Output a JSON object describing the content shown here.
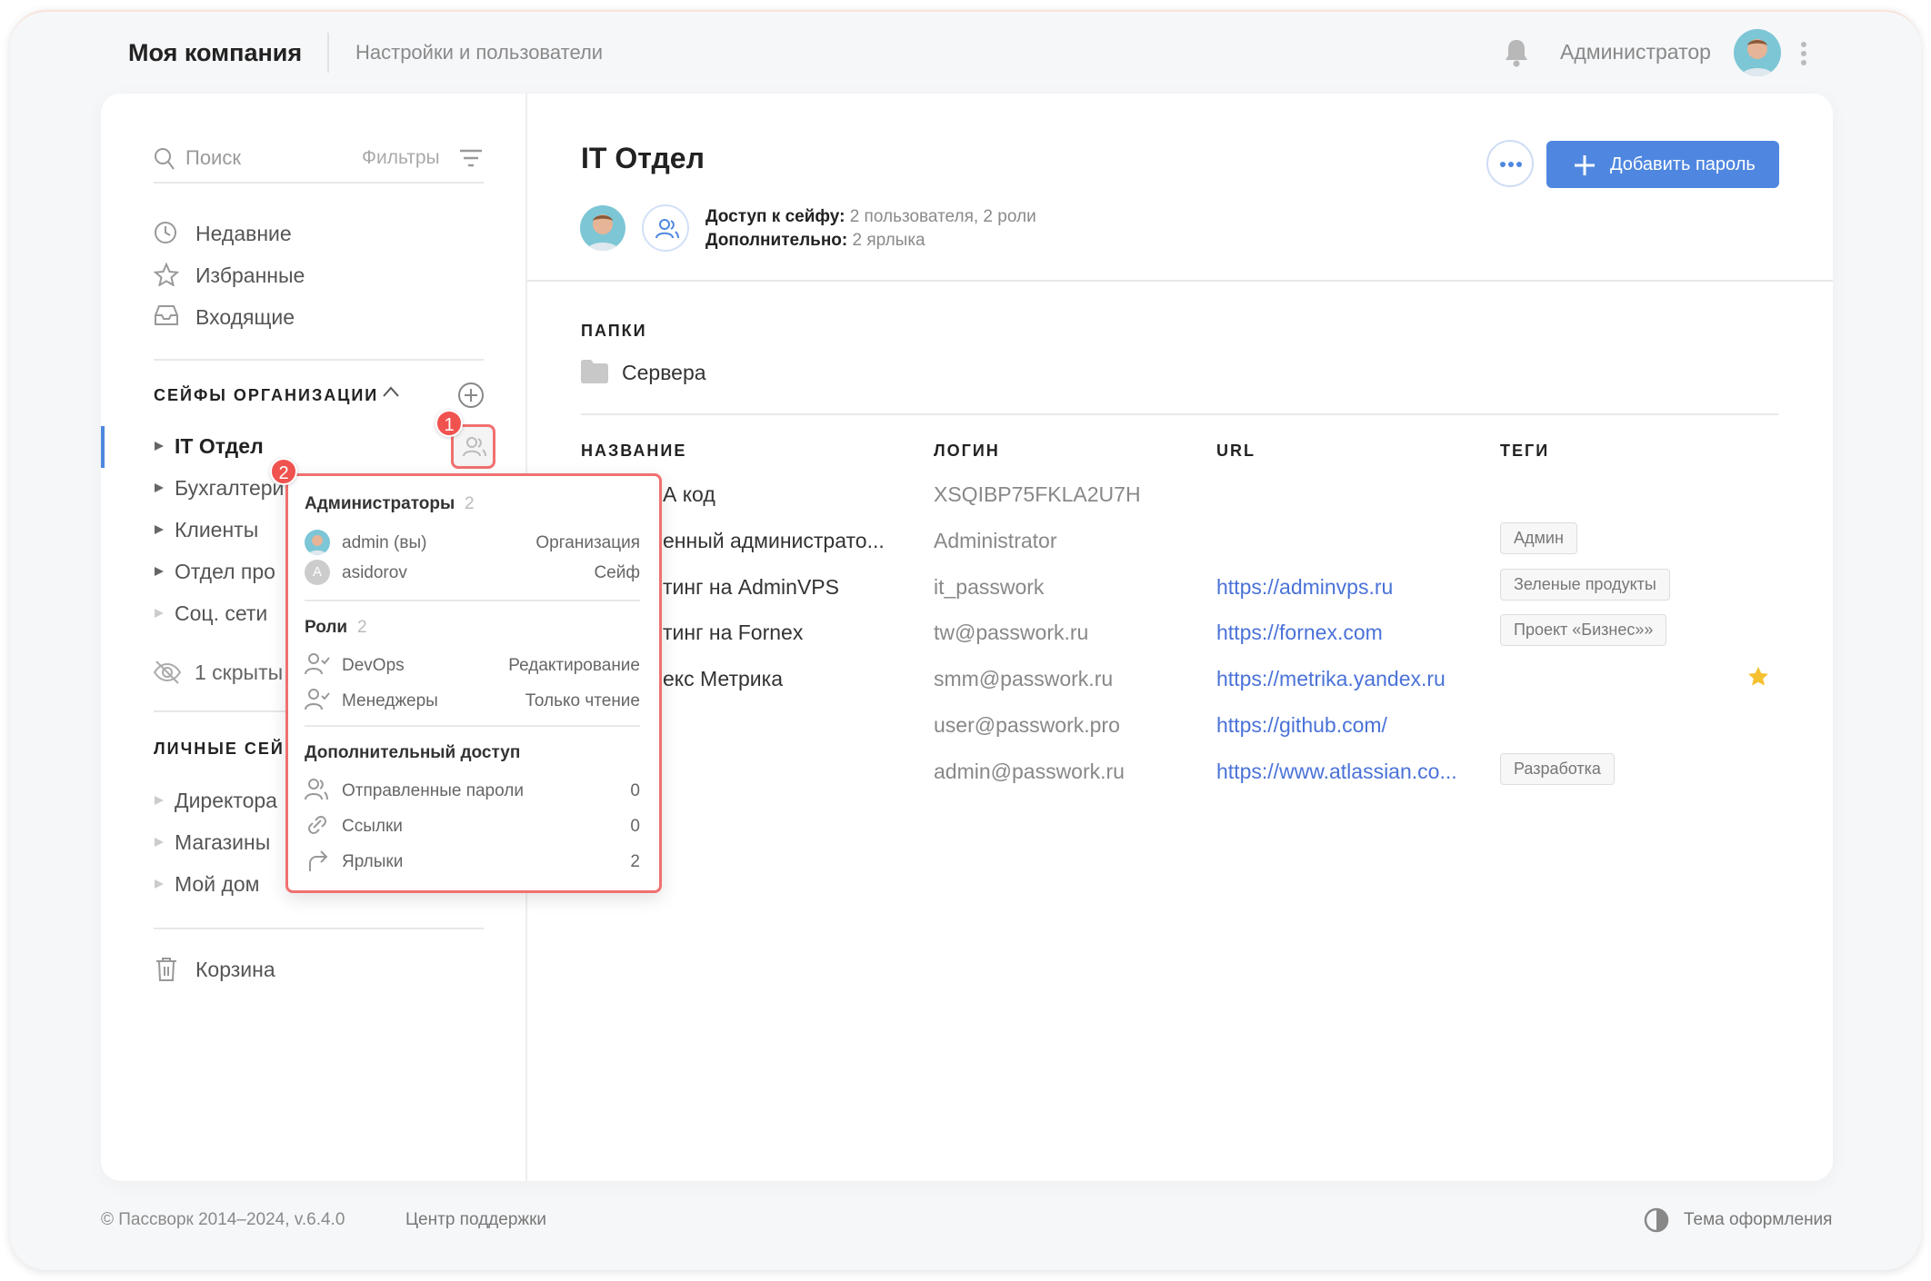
{
  "header": {
    "company": "Моя компания",
    "section": "Настройки и пользователи",
    "user": "Администратор",
    "icons": {
      "bell": "bell-icon",
      "menu": "more-vertical-icon"
    }
  },
  "sidebar": {
    "search_placeholder": "Поиск",
    "filters_label": "Фильтры",
    "nav": [
      {
        "label": "Недавние",
        "icon": "clock-icon"
      },
      {
        "label": "Избранные",
        "icon": "star-icon"
      },
      {
        "label": "Входящие",
        "icon": "inbox-icon"
      }
    ],
    "org_title": "СЕЙФЫ ОРГАНИЗАЦИИ",
    "org_vaults": [
      {
        "label": "IT Отдел",
        "active": true
      },
      {
        "label": "Бухгалтери"
      },
      {
        "label": "Клиенты"
      },
      {
        "label": "Отдел про"
      },
      {
        "label": "Соц. сети"
      }
    ],
    "hidden": "1 скрыты",
    "personal_title": "ЛИЧНЫЕ СЕЙ",
    "personal_vaults": [
      {
        "label": "Директора"
      },
      {
        "label": "Магазины"
      },
      {
        "label": "Мой дом"
      }
    ],
    "trash": "Корзина"
  },
  "popup": {
    "badge1": "1",
    "badge2": "2",
    "admins_title": "Администраторы",
    "admins_count": "2",
    "admins": [
      {
        "name": "admin (вы)",
        "level": "Организация"
      },
      {
        "name": "asidorov",
        "level": "Сейф",
        "initial": "A"
      }
    ],
    "roles_title": "Роли",
    "roles_count": "2",
    "roles": [
      {
        "name": "DevOps",
        "level": "Редактирование"
      },
      {
        "name": "Менеджеры",
        "level": "Только чтение"
      }
    ],
    "extra_title": "Дополнительный доступ",
    "extra": [
      {
        "name": "Отправленные пароли",
        "count": "0",
        "icon": "users-icon"
      },
      {
        "name": "Ссылки",
        "count": "0",
        "icon": "link-icon"
      },
      {
        "name": "Ярлыки",
        "count": "2",
        "icon": "shortcut-icon"
      }
    ]
  },
  "main": {
    "title": "IT Отдел",
    "add_button": "Добавить пароль",
    "access_label": "Доступ к сейфу:",
    "access_value": "2 пользователя, 2 роли",
    "extra_label": "Дополнительно:",
    "extra_value": "2 ярлыка",
    "folders_title": "ПАПКИ",
    "folders": [
      "Сервера"
    ],
    "columns": [
      "НАЗВАНИЕ",
      "ЛОГИН",
      "URL",
      "ТЕГИ"
    ],
    "rows": [
      {
        "name": "А код",
        "login": "XSQIBP75FKLA2U7H",
        "url": "",
        "tag": ""
      },
      {
        "name": "енный администрато...",
        "login": "Administrator",
        "url": "",
        "tag": "Админ"
      },
      {
        "name": "тинг на AdminVPS",
        "login": "it_passwork",
        "url": "https://adminvps.ru",
        "tag": "Зеленые продукты"
      },
      {
        "name": "тинг на Fornex",
        "login": "tw@passwork.ru",
        "url": "https://fornex.com",
        "tag": "Проект «Бизнес»»"
      },
      {
        "name": "екс Метрика",
        "login": "smm@passwork.ru",
        "url": "https://metrika.yandex.ru",
        "tag": "",
        "favorite": true
      },
      {
        "name": "",
        "login": "user@passwork.pro",
        "url": "https://github.com/",
        "tag": ""
      },
      {
        "name": "",
        "login": "admin@passwork.ru",
        "url": "https://www.atlassian.co...",
        "tag": "Разработка"
      }
    ]
  },
  "footer": {
    "copyright": "© Пассворк 2014–2024, v.6.4.0",
    "support": "Центр поддержки",
    "theme": "Тема оформления"
  },
  "colors": {
    "accent": "#4f87e0",
    "link": "#4a72d8",
    "highlight": "#f07070",
    "badge": "#f0524f",
    "star": "#f5c12e"
  }
}
